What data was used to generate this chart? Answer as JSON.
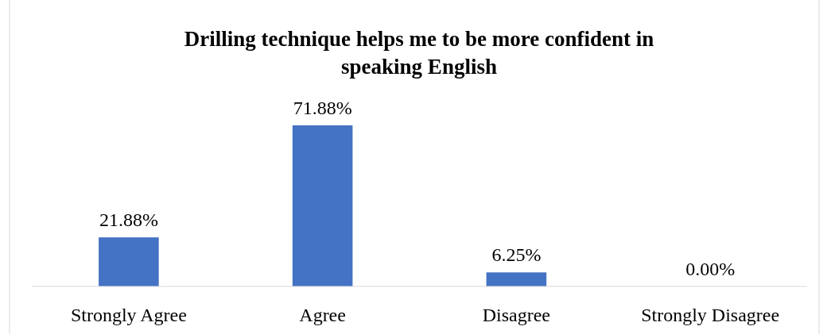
{
  "chart_data": {
    "type": "bar",
    "title": "Drilling technique helps me to be more confident in speaking English",
    "categories": [
      "Strongly Agree",
      "Agree",
      "Disagree",
      "Strongly Disagree"
    ],
    "values": [
      21.88,
      71.88,
      6.25,
      0
    ],
    "value_labels": [
      "21.88%",
      "71.88%",
      "6.25%",
      "0.00%"
    ],
    "color": "#4472c4"
  }
}
